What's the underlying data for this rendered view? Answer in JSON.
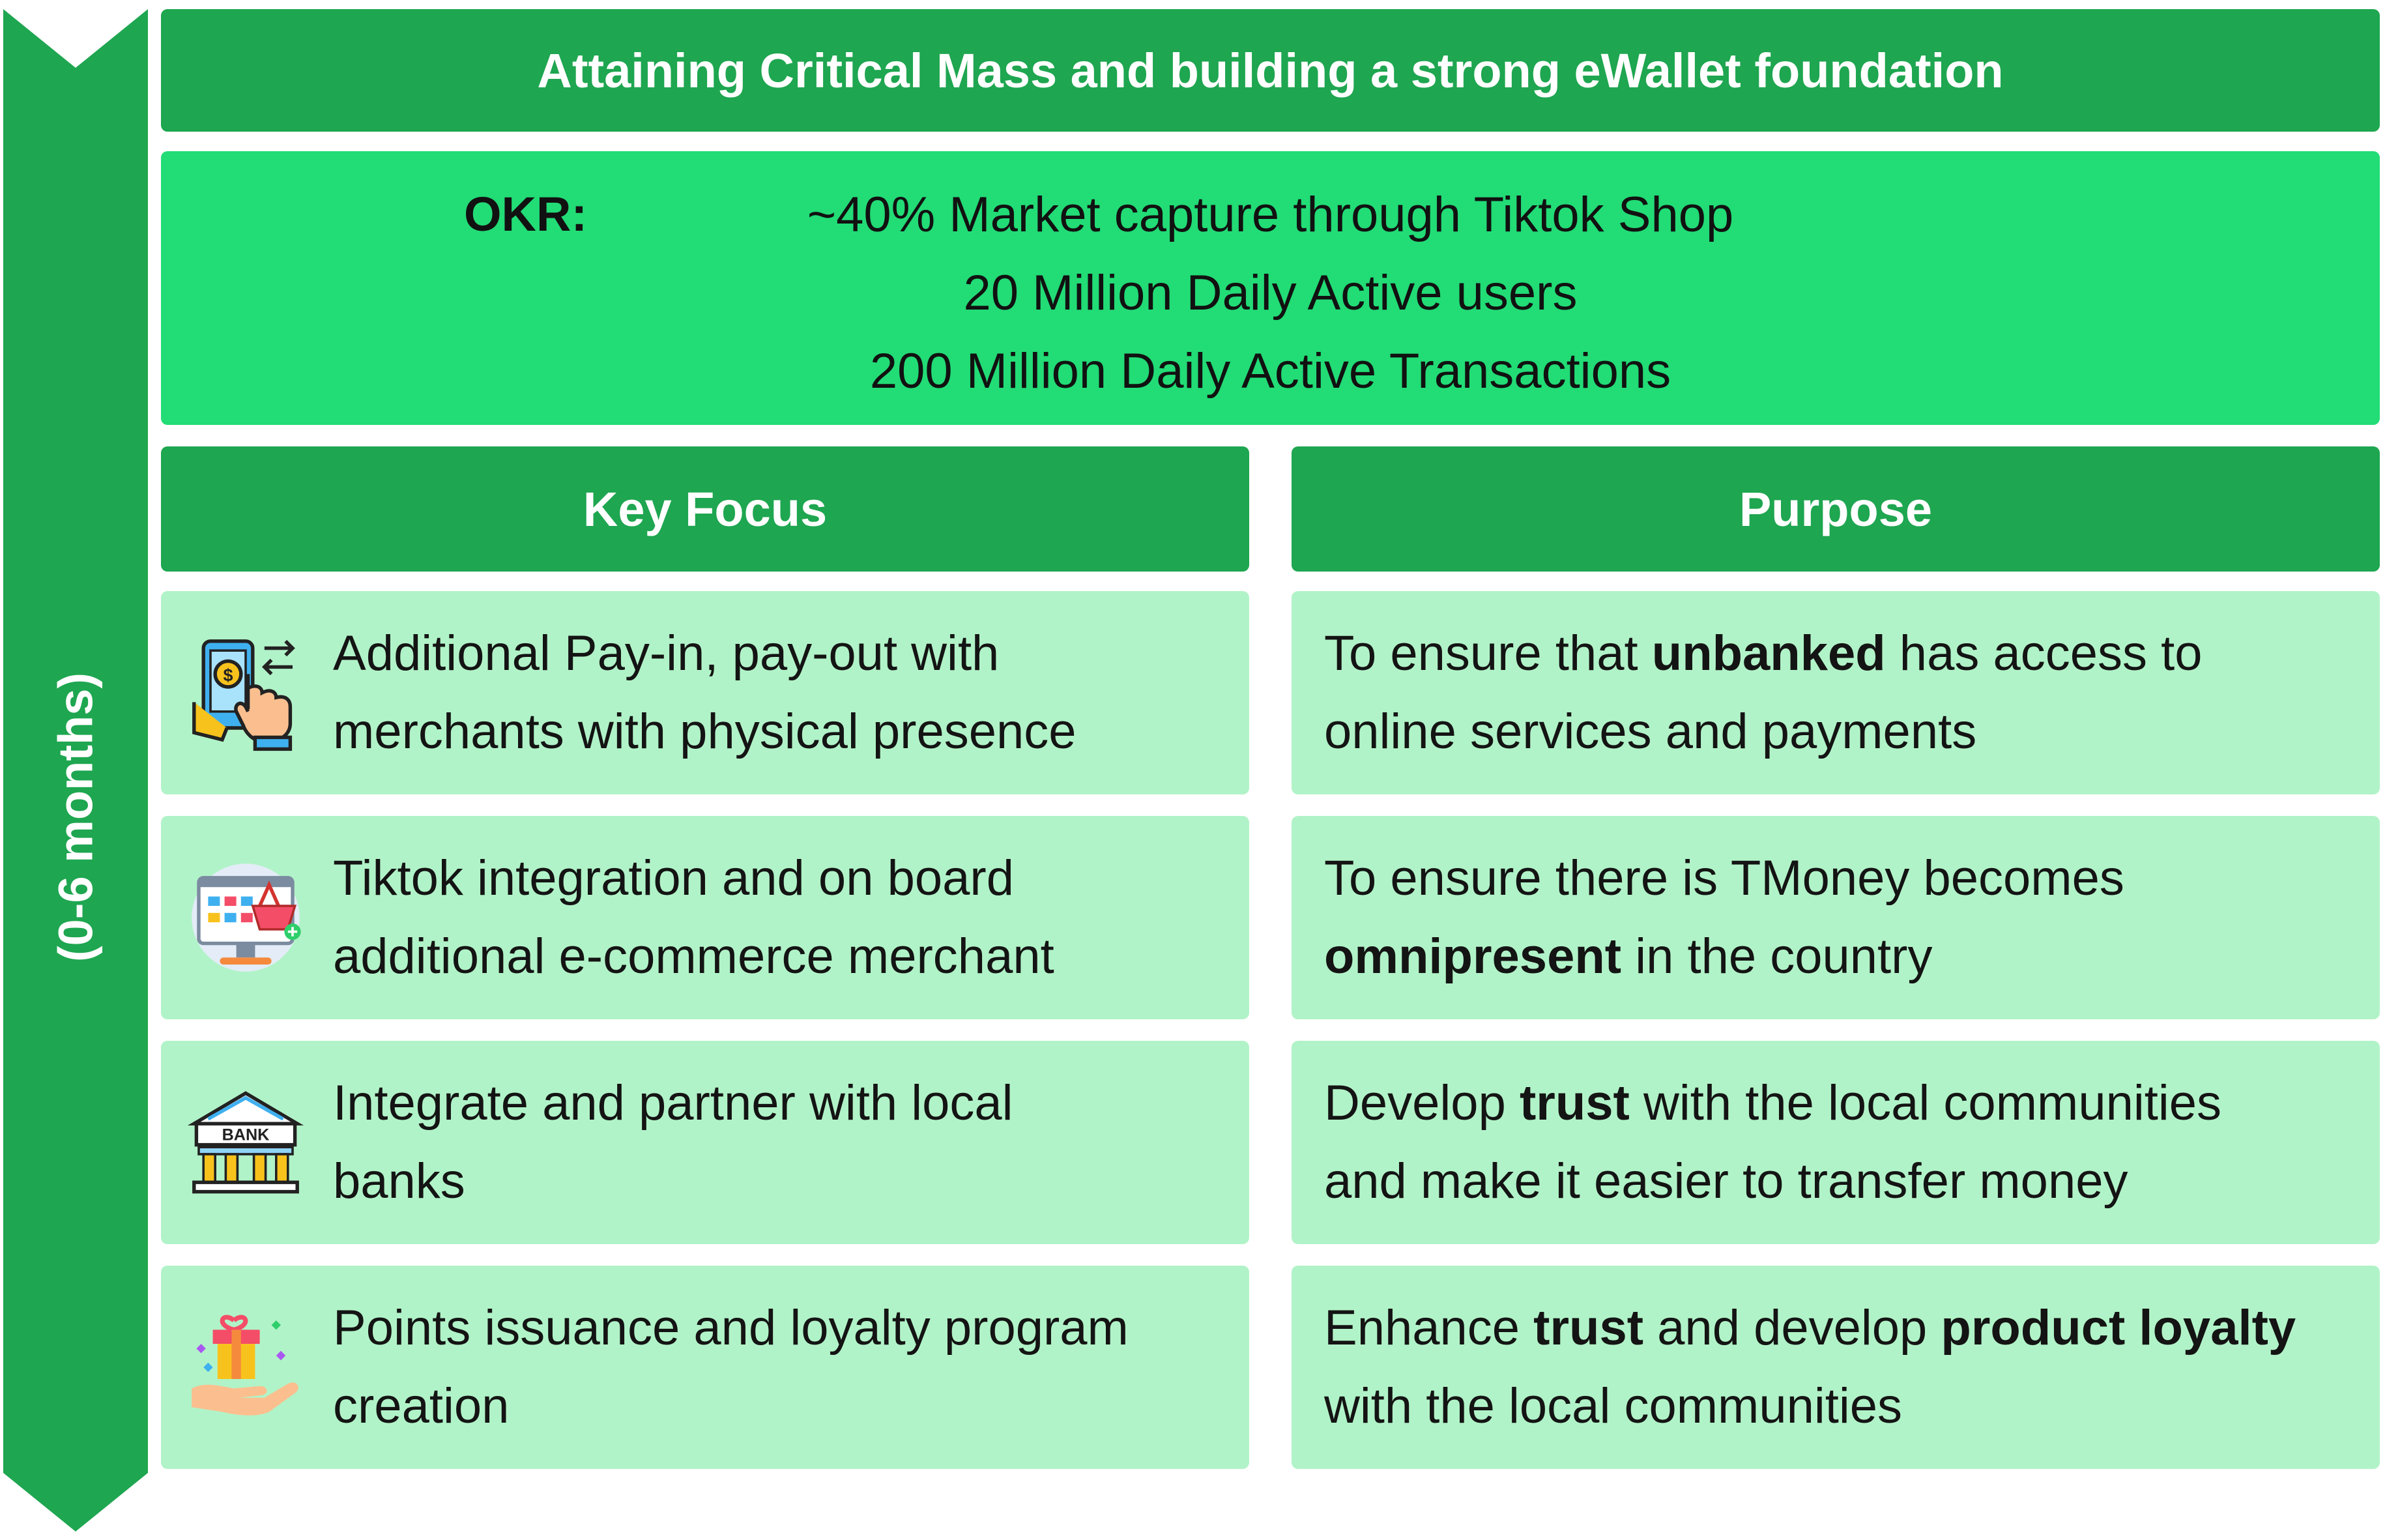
{
  "colors": {
    "dark_green": "#1ea650",
    "bright_green": "#22dc76",
    "light_green": "#b1f3c8"
  },
  "timeline": {
    "label": "(0-6 months)"
  },
  "header": {
    "title": "Attaining Critical Mass and building a strong eWallet foundation"
  },
  "okr": {
    "label": "OKR:",
    "lines": [
      "~40% Market capture through Tiktok Shop",
      "20 Million Daily Active users",
      "200 Million Daily Active Transactions"
    ]
  },
  "columns": {
    "left": "Key Focus",
    "right": "Purpose"
  },
  "rows": [
    {
      "icon": "mobile-payment-icon",
      "focus": [
        "Additional Pay-in, pay-out with",
        "merchants with physical presence"
      ],
      "purpose": {
        "p1": "To ensure that ",
        "b1": "unbanked",
        "p2": " has access to",
        "p3": "online services and payments"
      }
    },
    {
      "icon": "ecommerce-monitor-icon",
      "focus": [
        "Tiktok integration and on board",
        "additional e-commerce merchant"
      ],
      "purpose": {
        "p1": "To ensure there is TMoney becomes",
        "b1": "omnipresent",
        "p2": " in the country"
      }
    },
    {
      "icon": "bank-icon",
      "icon_text": "BANK",
      "focus": [
        "Integrate and partner with local",
        "banks"
      ],
      "purpose": {
        "p1": "Develop ",
        "b1": "trust",
        "p2": " with the local communities",
        "p3": "and make it easier to transfer money"
      }
    },
    {
      "icon": "gift-hand-icon",
      "focus": [
        "Points issuance and loyalty program",
        "creation"
      ],
      "purpose": {
        "p1": "Enhance ",
        "b1": "trust",
        "p2": " and develop ",
        "b2": "product loyalty",
        "p3": "with the local communities"
      }
    }
  ]
}
